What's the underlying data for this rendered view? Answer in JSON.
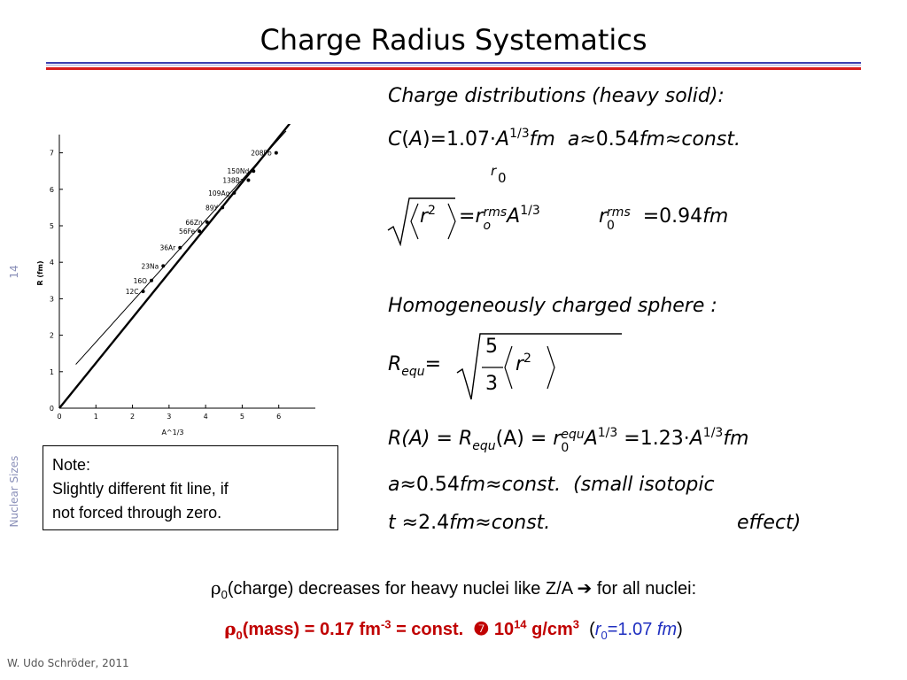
{
  "slide": {
    "title": "Charge Radius Systematics",
    "page_number": "14",
    "topic": "Nuclear Sizes",
    "footer": "W. Udo Schröder, 2011"
  },
  "note": {
    "heading": "Note:",
    "line1": "Slightly different fit line, if",
    "line2": "not forced through zero."
  },
  "equations": {
    "charge_heading": "Charge distributions (heavy solid):",
    "C_lhs": "C",
    "C_arg": "A",
    "C_coef": "=1.07⋅",
    "A_sym": "A",
    "third": "1/3",
    "fm": "fm",
    "a_lhs": "a",
    "approx": "≈",
    "a_value": "0.54",
    "const": "const.",
    "r0_label": "r",
    "r0_sub": "0",
    "rms_r2": "r",
    "rms_sq": "2",
    "equals": "=",
    "r_o": "r",
    "o_sub": "o",
    "rms_sup": "rms",
    "r0rms_value": "=0.94",
    "homog_heading": "Homogeneously charged sphere :",
    "R_equ": "R",
    "equ_sub": "equ",
    "five": "5",
    "three": "3",
    "R_A_lhs": "R(A)",
    "R_equ_A": "(A)",
    "equ_sup": "equ",
    "coef_123": "=1.23⋅",
    "small_isotopic": "(small  isotopic",
    "t_lhs": "t",
    "t_value": "2.4",
    "effect": "effect)"
  },
  "statements": {
    "rho": "ρ",
    "rho_sub": "0",
    "charge_text": "(charge) decreases for heavy nuclei like Z/A",
    "arrow": "➔",
    "all_nuclei": "for all nuclei:",
    "mass_text": "(mass) = 0.17 fm",
    "mass_exp": "-3",
    "mass_const": "= const.",
    "mass_bullet": "❼",
    "mass_density": "10",
    "mass_density_exp": "14",
    "mass_unit": "g/cm",
    "mass_unit_exp": "3",
    "r0_paren_open": "(",
    "r0_sym": "r",
    "r0_value": "=1.07",
    "r0_unit": "fm",
    "r0_paren_close": ")"
  },
  "chart_data": {
    "type": "scatter",
    "xlabel": "A^1/3",
    "ylabel": "R (fm)",
    "xlim": [
      0,
      7
    ],
    "ylim": [
      0,
      7.5
    ],
    "xticks": [
      "0",
      "1",
      "2",
      "3",
      "4",
      "5",
      "6"
    ],
    "yticks": [
      "0",
      "1",
      "2",
      "3",
      "4",
      "5",
      "6",
      "7"
    ],
    "points": [
      {
        "label": "12C",
        "x": 2.29,
        "y": 3.2
      },
      {
        "label": "16O",
        "x": 2.52,
        "y": 3.5
      },
      {
        "label": "23Na",
        "x": 2.84,
        "y": 3.9
      },
      {
        "label": "36Ar",
        "x": 3.3,
        "y": 4.4
      },
      {
        "label": "56Fe",
        "x": 3.83,
        "y": 4.85
      },
      {
        "label": "66Zn",
        "x": 4.04,
        "y": 5.1
      },
      {
        "label": "89Y",
        "x": 4.46,
        "y": 5.5
      },
      {
        "label": "109Ag",
        "x": 4.78,
        "y": 5.9
      },
      {
        "label": "138Ba",
        "x": 5.17,
        "y": 6.25
      },
      {
        "label": "150Nd",
        "x": 5.31,
        "y": 6.5
      },
      {
        "label": "208Pb",
        "x": 5.93,
        "y": 7.0
      }
    ],
    "series": [
      {
        "fit": "through_zero",
        "x": [
          0,
          6.3
        ],
        "y": [
          0,
          7.8
        ]
      },
      {
        "fit": "free",
        "x": [
          0.45,
          6.2
        ],
        "y": [
          1.2,
          7.6
        ]
      }
    ]
  }
}
